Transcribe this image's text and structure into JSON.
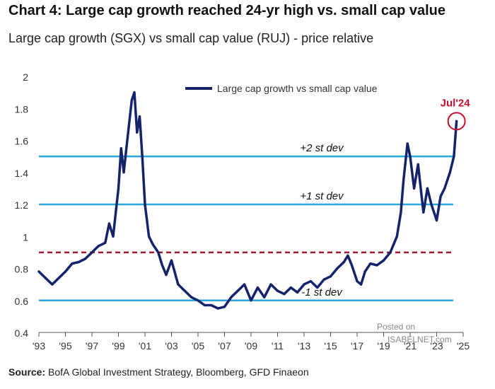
{
  "title": "Chart 4: Large cap growth reached 24-yr high vs. small cap value",
  "subtitle": "Large cap growth (SGX) vs small cap value (RUJ) - price relative",
  "source_label": "Source:",
  "source_text": " BofA Global Investment Strategy, Bloomberg, GFD Finaeon",
  "watermark": {
    "line1": "Posted on",
    "line2": "ISABELNET.com"
  },
  "colors": {
    "series": "#14246b",
    "bands": "#29a8e0",
    "mean": "#a51b2d",
    "highlight": "#c8102e"
  },
  "chart_data": {
    "type": "line",
    "title": "Chart 4: Large cap growth reached 24-yr high vs. small cap value",
    "xlabel": "",
    "ylabel": "",
    "xlim": [
      1993,
      2025
    ],
    "ylim": [
      0.4,
      2.0
    ],
    "yticks": [
      0.4,
      0.6,
      0.8,
      1.0,
      1.2,
      1.4,
      1.6,
      1.8,
      2.0
    ],
    "ytick_labels": [
      "0.4",
      "0.6",
      "0.8",
      "1",
      "1.2",
      "1.4",
      "1.6",
      "1.8",
      "2"
    ],
    "xticks": [
      1993,
      1995,
      1997,
      1999,
      2001,
      2003,
      2005,
      2007,
      2009,
      2011,
      2013,
      2015,
      2017,
      2019,
      2021,
      2023,
      2025
    ],
    "xtick_labels": [
      "'93",
      "'95",
      "'97",
      "'99",
      "'01",
      "'03",
      "'05",
      "'07",
      "'09",
      "'11",
      "'13",
      "'15",
      "'17",
      "'19",
      "'21",
      "'23",
      "'25"
    ],
    "legend": {
      "position": "top",
      "entries": [
        "Large cap growth vs small cap value"
      ]
    },
    "series": [
      {
        "name": "Large cap growth vs small cap value",
        "x": [
          1993.0,
          1993.5,
          1994.0,
          1994.5,
          1995.0,
          1995.5,
          1996.0,
          1996.5,
          1997.0,
          1997.5,
          1998.0,
          1998.3,
          1998.6,
          1998.8,
          1999.0,
          1999.2,
          1999.4,
          1999.6,
          1999.8,
          2000.0,
          2000.2,
          2000.4,
          2000.6,
          2000.8,
          2001.0,
          2001.3,
          2001.6,
          2002.0,
          2002.3,
          2002.6,
          2003.0,
          2003.5,
          2004.0,
          2004.5,
          2005.0,
          2005.5,
          2006.0,
          2006.5,
          2007.0,
          2007.5,
          2008.0,
          2008.5,
          2009.0,
          2009.5,
          2010.0,
          2010.5,
          2011.0,
          2011.5,
          2012.0,
          2012.5,
          2013.0,
          2013.5,
          2014.0,
          2014.5,
          2015.0,
          2015.5,
          2016.0,
          2016.3,
          2016.6,
          2017.0,
          2017.3,
          2017.6,
          2018.0,
          2018.5,
          2019.0,
          2019.5,
          2020.0,
          2020.3,
          2020.5,
          2020.8,
          2021.0,
          2021.3,
          2021.6,
          2022.0,
          2022.3,
          2022.6,
          2023.0,
          2023.3,
          2023.6,
          2024.0,
          2024.3,
          2024.5
        ],
        "y": [
          0.78,
          0.74,
          0.7,
          0.74,
          0.78,
          0.83,
          0.84,
          0.86,
          0.9,
          0.94,
          0.96,
          1.08,
          1.0,
          1.15,
          1.3,
          1.55,
          1.4,
          1.55,
          1.7,
          1.85,
          1.9,
          1.65,
          1.75,
          1.5,
          1.2,
          1.0,
          0.95,
          0.9,
          0.82,
          0.76,
          0.85,
          0.7,
          0.66,
          0.62,
          0.6,
          0.57,
          0.57,
          0.55,
          0.56,
          0.62,
          0.66,
          0.7,
          0.6,
          0.68,
          0.62,
          0.7,
          0.66,
          0.64,
          0.68,
          0.65,
          0.7,
          0.72,
          0.68,
          0.73,
          0.75,
          0.8,
          0.84,
          0.88,
          0.82,
          0.72,
          0.7,
          0.78,
          0.83,
          0.82,
          0.85,
          0.9,
          1.0,
          1.15,
          1.35,
          1.58,
          1.5,
          1.3,
          1.45,
          1.15,
          1.3,
          1.2,
          1.1,
          1.25,
          1.3,
          1.4,
          1.5,
          1.72
        ]
      }
    ],
    "reference_lines": [
      {
        "y": 1.5,
        "label": "+2 st dev",
        "style": "solid"
      },
      {
        "y": 1.2,
        "label": "+1 st dev",
        "style": "solid"
      },
      {
        "y": 0.9,
        "label": "",
        "style": "dashed"
      },
      {
        "y": 0.6,
        "label": "-1 st dev",
        "style": "solid"
      }
    ],
    "annotations": [
      {
        "text": "Jul'24",
        "x": 2024.5,
        "y": 1.72,
        "marker": "circle"
      }
    ],
    "grid": false
  }
}
